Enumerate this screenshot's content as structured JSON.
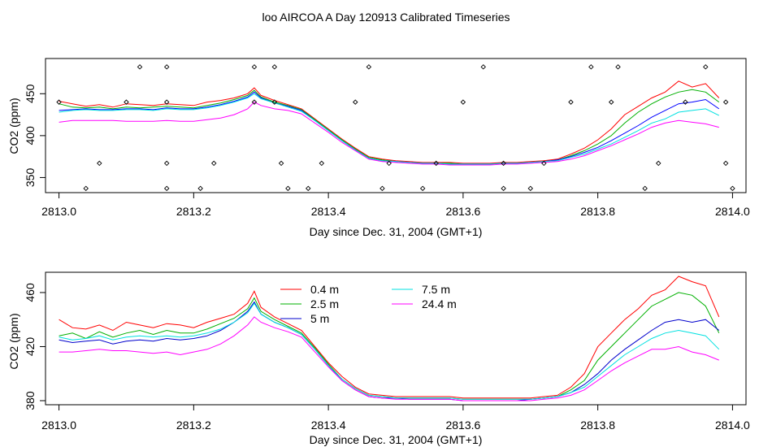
{
  "figure_title": "loo AIRCOA A  Day 120913  Calibrated Timeseries",
  "chart_data": [
    {
      "type": "scatter+line",
      "xlabel": "Day since Dec. 31, 2004 (GMT+1)",
      "ylabel": "CO2 (ppm)",
      "xlim": [
        2812.98,
        2814.02
      ],
      "ylim": [
        332,
        492
      ],
      "xticks": [
        2813.0,
        2813.2,
        2813.4,
        2813.6,
        2813.8,
        2814.0
      ],
      "xtick_labels": [
        "2813.0",
        "2813.2",
        "2813.4",
        "2813.6",
        "2813.8",
        "2814.0"
      ],
      "yticks": [
        350,
        400,
        450
      ],
      "ytick_labels": [
        "350",
        "400",
        "450"
      ],
      "grid": false,
      "colors": [
        "#ff0000",
        "#00b000",
        "#0000ff",
        "#00e0e0",
        "#ff00ff"
      ],
      "x": [
        2813.0,
        2813.02,
        2813.04,
        2813.06,
        2813.08,
        2813.1,
        2813.12,
        2813.14,
        2813.16,
        2813.18,
        2813.2,
        2813.22,
        2813.24,
        2813.26,
        2813.28,
        2813.29,
        2813.3,
        2813.32,
        2813.34,
        2813.36,
        2813.38,
        2813.4,
        2813.42,
        2813.44,
        2813.46,
        2813.48,
        2813.5,
        2813.52,
        2813.54,
        2813.56,
        2813.58,
        2813.6,
        2813.62,
        2813.64,
        2813.66,
        2813.68,
        2813.7,
        2813.72,
        2813.74,
        2813.76,
        2813.78,
        2813.8,
        2813.82,
        2813.84,
        2813.86,
        2813.88,
        2813.9,
        2813.92,
        2813.94,
        2813.96,
        2813.98
      ],
      "series": [
        {
          "values": [
            441,
            438,
            435,
            437,
            434,
            438,
            437,
            436,
            438,
            437,
            436,
            440,
            442,
            445,
            450,
            457,
            448,
            442,
            437,
            432,
            420,
            408,
            396,
            385,
            375,
            372,
            370,
            369,
            368,
            368,
            368,
            367,
            367,
            367,
            368,
            368,
            369,
            370,
            372,
            378,
            385,
            395,
            408,
            425,
            435,
            445,
            452,
            465,
            458,
            462,
            445
          ]
        },
        {
          "values": [
            438,
            434,
            433,
            434,
            432,
            434,
            433,
            434,
            435,
            434,
            433,
            436,
            439,
            443,
            448,
            454,
            446,
            440,
            436,
            431,
            419,
            407,
            395,
            384,
            374,
            371,
            369,
            368,
            367,
            367,
            367,
            366,
            366,
            366,
            367,
            367,
            368,
            369,
            371,
            376,
            382,
            390,
            400,
            415,
            428,
            438,
            446,
            452,
            455,
            452,
            440
          ]
        },
        {
          "values": [
            430,
            431,
            432,
            431,
            431,
            432,
            432,
            431,
            433,
            432,
            432,
            434,
            437,
            441,
            446,
            452,
            445,
            439,
            435,
            430,
            418,
            406,
            394,
            383,
            373,
            370,
            369,
            368,
            367,
            367,
            366,
            366,
            366,
            366,
            367,
            367,
            368,
            369,
            371,
            375,
            380,
            386,
            394,
            403,
            412,
            422,
            430,
            438,
            440,
            443,
            432
          ]
        },
        {
          "values": [
            428,
            430,
            431,
            430,
            430,
            431,
            431,
            430,
            432,
            431,
            431,
            433,
            436,
            440,
            445,
            450,
            444,
            439,
            434,
            429,
            418,
            406,
            394,
            383,
            373,
            370,
            369,
            368,
            367,
            367,
            366,
            366,
            366,
            366,
            367,
            367,
            368,
            369,
            370,
            374,
            378,
            384,
            390,
            398,
            406,
            415,
            420,
            428,
            430,
            432,
            424
          ]
        },
        {
          "values": [
            416,
            418,
            418,
            418,
            418,
            417,
            417,
            417,
            418,
            417,
            417,
            419,
            421,
            425,
            432,
            440,
            436,
            432,
            430,
            426,
            415,
            404,
            392,
            382,
            372,
            369,
            368,
            367,
            366,
            366,
            365,
            365,
            365,
            365,
            366,
            366,
            367,
            368,
            369,
            372,
            376,
            382,
            388,
            395,
            402,
            410,
            415,
            418,
            416,
            414,
            410
          ]
        }
      ],
      "markers_x": [
        2813.0,
        2813.04,
        2813.06,
        2813.1,
        2813.12,
        2813.16,
        2813.16,
        2813.16,
        2813.16,
        2813.21,
        2813.23,
        2813.29,
        2813.29,
        2813.32,
        2813.32,
        2813.33,
        2813.34,
        2813.37,
        2813.39,
        2813.44,
        2813.46,
        2813.48,
        2813.49,
        2813.54,
        2813.56,
        2813.6,
        2813.63,
        2813.66,
        2813.66,
        2813.7,
        2813.72,
        2813.76,
        2813.79,
        2813.82,
        2813.83,
        2813.87,
        2813.89,
        2813.93,
        2813.96,
        2813.99,
        2813.99,
        2814.0
      ],
      "markers_y": [
        440,
        337,
        367,
        440,
        482,
        440,
        482,
        367,
        337,
        337,
        367,
        482,
        440,
        482,
        440,
        367,
        337,
        337,
        367,
        440,
        482,
        337,
        367,
        337,
        367,
        440,
        482,
        337,
        367,
        337,
        367,
        440,
        482,
        440,
        482,
        337,
        367,
        440,
        482,
        440,
        367,
        337
      ]
    },
    {
      "type": "line",
      "xlabel": "Day since Dec. 31, 2004 (GMT+1)",
      "ylabel": "CO2 (ppm)",
      "xlim": [
        2812.98,
        2814.02
      ],
      "ylim": [
        377,
        475
      ],
      "xticks": [
        2813.0,
        2813.2,
        2813.4,
        2813.6,
        2813.8,
        2814.0
      ],
      "xtick_labels": [
        "2813.0",
        "2813.2",
        "2813.4",
        "2813.6",
        "2813.8",
        "2814.0"
      ],
      "yticks": [
        380,
        420,
        460
      ],
      "ytick_labels": [
        "380",
        "420",
        "460"
      ],
      "grid": false,
      "legend_position": "top-center",
      "x": [
        2813.0,
        2813.02,
        2813.04,
        2813.06,
        2813.08,
        2813.1,
        2813.12,
        2813.14,
        2813.16,
        2813.18,
        2813.2,
        2813.22,
        2813.24,
        2813.26,
        2813.28,
        2813.29,
        2813.3,
        2813.32,
        2813.34,
        2813.36,
        2813.38,
        2813.4,
        2813.42,
        2813.44,
        2813.46,
        2813.48,
        2813.5,
        2813.52,
        2813.54,
        2813.56,
        2813.58,
        2813.6,
        2813.62,
        2813.64,
        2813.66,
        2813.68,
        2813.7,
        2813.72,
        2813.74,
        2813.76,
        2813.78,
        2813.8,
        2813.82,
        2813.84,
        2813.86,
        2813.88,
        2813.9,
        2813.92,
        2813.94,
        2813.96,
        2813.98
      ],
      "series": [
        {
          "name": "0.4 m",
          "color": "#ff0000",
          "values": [
            440,
            434,
            433,
            436,
            432,
            438,
            436,
            434,
            437,
            436,
            434,
            438,
            441,
            444,
            452,
            461,
            449,
            442,
            437,
            432,
            420,
            408,
            398,
            390,
            385,
            384,
            383,
            383,
            383,
            383,
            383,
            382,
            382,
            382,
            382,
            382,
            382,
            383,
            384,
            390,
            400,
            420,
            430,
            440,
            448,
            458,
            462,
            472,
            468,
            465,
            442
          ]
        },
        {
          "name": "2.5 m",
          "color": "#00b000",
          "values": [
            428,
            430,
            426,
            431,
            427,
            430,
            432,
            429,
            432,
            430,
            430,
            433,
            437,
            441,
            448,
            456,
            446,
            440,
            435,
            430,
            419,
            407,
            396,
            389,
            384,
            383,
            382,
            382,
            382,
            382,
            382,
            381,
            381,
            381,
            381,
            381,
            381,
            382,
            383,
            388,
            395,
            410,
            420,
            430,
            440,
            450,
            455,
            460,
            458,
            450,
            430
          ]
        },
        {
          "name": "5 m",
          "color": "#0000cc",
          "values": [
            425,
            423,
            424,
            425,
            422,
            424,
            425,
            424,
            426,
            425,
            426,
            428,
            432,
            438,
            446,
            453,
            444,
            438,
            434,
            429,
            418,
            406,
            395,
            388,
            383,
            382,
            382,
            381,
            381,
            381,
            381,
            380,
            380,
            380,
            380,
            380,
            381,
            382,
            383,
            386,
            392,
            400,
            410,
            418,
            425,
            432,
            438,
            440,
            438,
            440,
            432
          ]
        },
        {
          "name": "7.5 m",
          "color": "#00e0e0",
          "values": [
            427,
            425,
            426,
            428,
            425,
            427,
            428,
            427,
            428,
            427,
            428,
            430,
            433,
            438,
            445,
            452,
            444,
            438,
            434,
            429,
            418,
            406,
            396,
            389,
            384,
            383,
            382,
            382,
            382,
            382,
            382,
            381,
            381,
            381,
            381,
            381,
            381,
            382,
            383,
            386,
            390,
            398,
            406,
            414,
            420,
            426,
            430,
            432,
            430,
            428,
            418
          ]
        },
        {
          "name": "24.4 m",
          "color": "#ff00ff",
          "values": [
            416,
            416,
            417,
            418,
            417,
            417,
            416,
            415,
            416,
            414,
            416,
            418,
            422,
            428,
            436,
            442,
            438,
            434,
            431,
            427,
            416,
            405,
            395,
            388,
            383,
            382,
            381,
            381,
            381,
            381,
            381,
            380,
            380,
            380,
            380,
            380,
            380,
            381,
            382,
            384,
            388,
            395,
            402,
            408,
            413,
            418,
            418,
            420,
            416,
            414,
            410
          ]
        }
      ]
    }
  ]
}
